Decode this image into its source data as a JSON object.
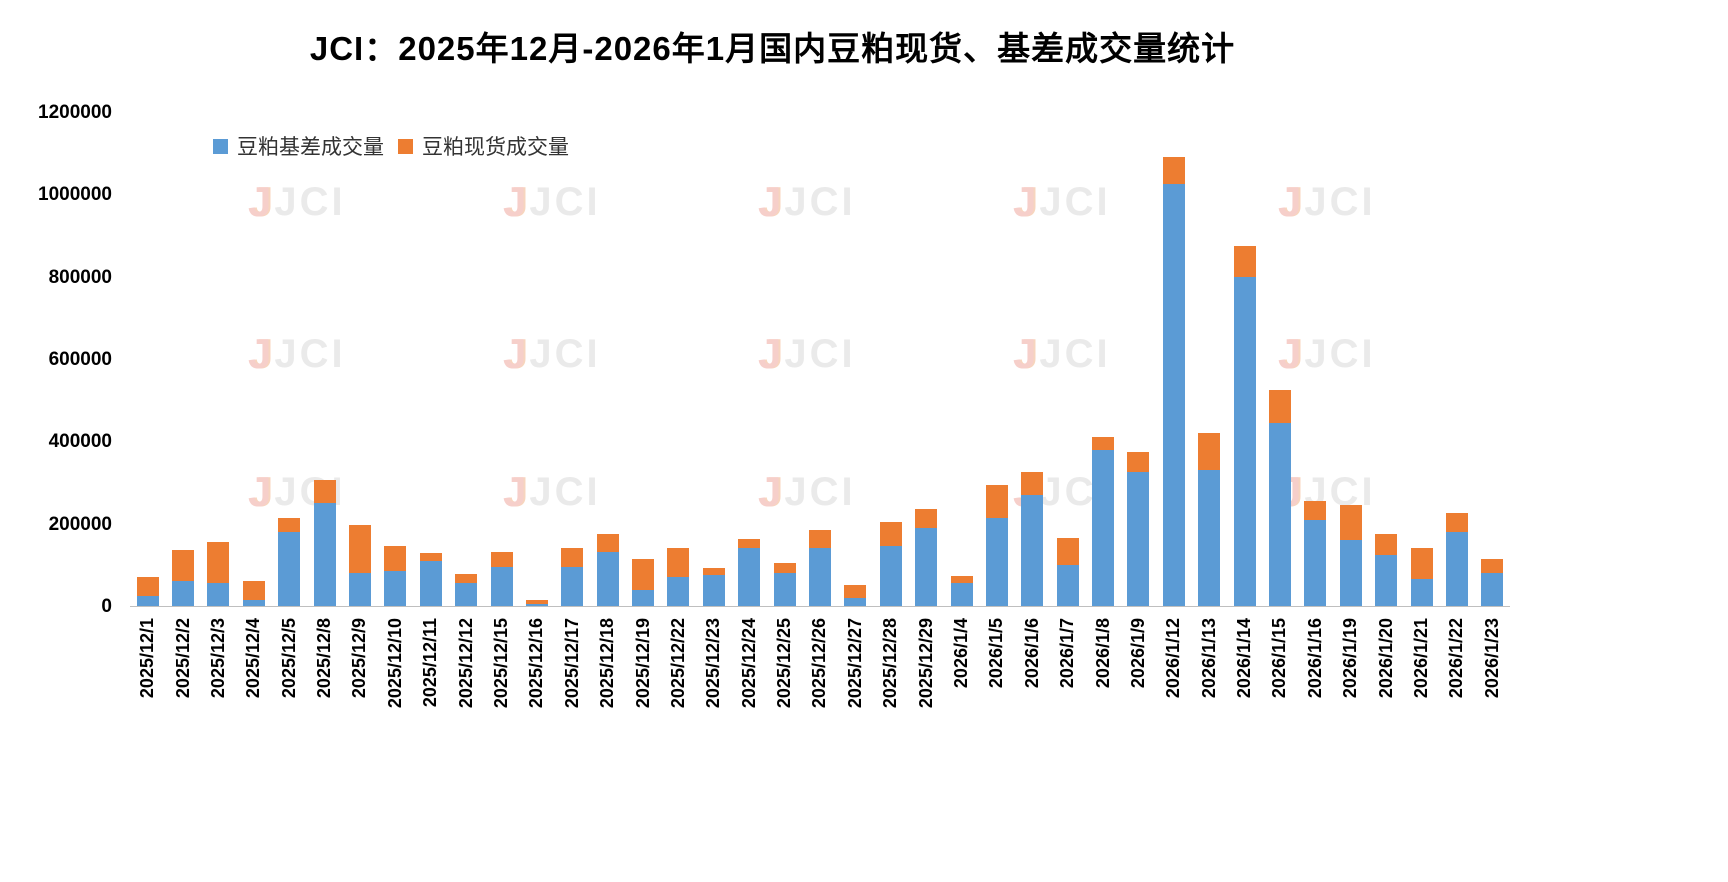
{
  "title": "JCI：2025年12月-2026年1月国内豆粕现货、基差成交量统计",
  "legend": [
    {
      "label": "豆粕基差成交量",
      "color": "#5B9BD5"
    },
    {
      "label": "豆粕现货成交量",
      "color": "#ED7D31"
    }
  ],
  "watermark": {
    "logo": "J",
    "text": "JCI"
  },
  "chart_data": {
    "type": "bar",
    "stacked": true,
    "title": "JCI：2025年12月-2026年1月国内豆粕现货、基差成交量统计",
    "xlabel": "",
    "ylabel": "",
    "ylim": [
      0,
      1200000
    ],
    "yticks": [
      0,
      200000,
      400000,
      600000,
      800000,
      1000000,
      1200000
    ],
    "grid": false,
    "legend_position": "top-left",
    "categories": [
      "2025/12/1",
      "2025/12/2",
      "2025/12/3",
      "2025/12/4",
      "2025/12/5",
      "2025/12/8",
      "2025/12/9",
      "2025/12/10",
      "2025/12/11",
      "2025/12/12",
      "2025/12/15",
      "2025/12/16",
      "2025/12/17",
      "2025/12/18",
      "2025/12/19",
      "2025/12/22",
      "2025/12/23",
      "2025/12/24",
      "2025/12/25",
      "2025/12/26",
      "2025/12/27",
      "2025/12/28",
      "2025/12/29",
      "2026/1/4",
      "2026/1/5",
      "2026/1/6",
      "2026/1/7",
      "2026/1/8",
      "2026/1/9",
      "2026/1/12",
      "2026/1/13",
      "2026/1/14",
      "2026/1/15",
      "2026/1/16",
      "2026/1/19",
      "2026/1/20",
      "2026/1/21",
      "2026/1/22",
      "2026/1/23"
    ],
    "series": [
      {
        "name": "豆粕基差成交量",
        "color": "#5B9BD5",
        "values": [
          25000,
          60000,
          55000,
          15000,
          180000,
          250000,
          80000,
          85000,
          110000,
          55000,
          95000,
          5000,
          95000,
          130000,
          40000,
          70000,
          75000,
          140000,
          80000,
          140000,
          20000,
          145000,
          190000,
          55000,
          215000,
          270000,
          100000,
          380000,
          325000,
          1025000,
          330000,
          800000,
          445000,
          210000,
          160000,
          125000,
          65000,
          180000,
          80000
        ]
      },
      {
        "name": "豆粕现货成交量",
        "color": "#ED7D31",
        "values": [
          45000,
          75000,
          100000,
          45000,
          35000,
          55000,
          117000,
          60000,
          20000,
          23000,
          37000,
          10000,
          45000,
          45000,
          75000,
          70000,
          17000,
          23000,
          25000,
          45000,
          30000,
          60000,
          45000,
          18000,
          78000,
          55000,
          65000,
          30000,
          50000,
          65000,
          90000,
          75000,
          80000,
          45000,
          85000,
          50000,
          75000,
          45000,
          35000
        ]
      }
    ]
  }
}
